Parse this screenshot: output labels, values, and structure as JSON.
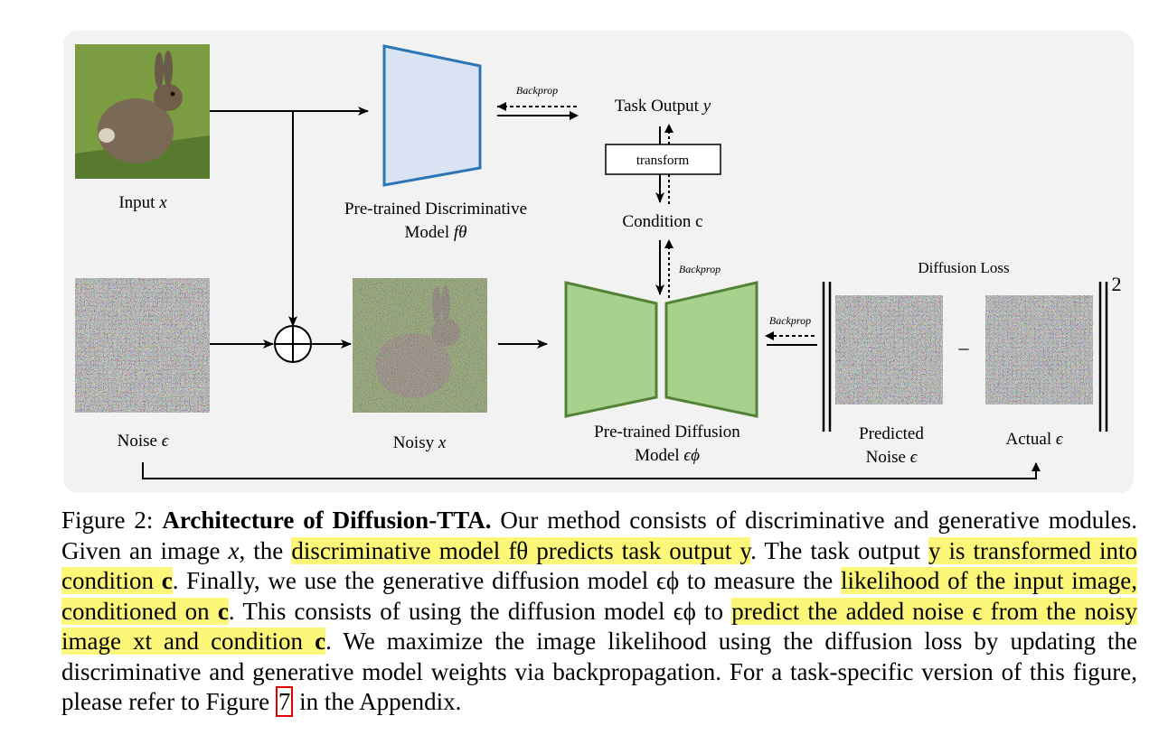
{
  "figure": {
    "input_label": "Input",
    "input_var": "x",
    "noise_label": "Noise",
    "noise_var": "ϵ",
    "noisy_label": "Noisy",
    "noisy_var": "x",
    "disc_model_line1": "Pre-trained Discriminative",
    "disc_model_line2": "Model",
    "disc_model_var": "fθ",
    "task_output_label": "Task Output",
    "task_output_var": "y",
    "transform_label": "transform",
    "condition_label": "Condition c",
    "backprop_label": "Backprop",
    "diff_model_line1": "Pre-trained Diffusion",
    "diff_model_line2": "Model",
    "diff_model_var": "ϵϕ",
    "diffusion_loss_label": "Diffusion Loss",
    "predicted_line1": "Predicted",
    "predicted_line2": "Noise",
    "predicted_var": "ϵ",
    "actual_label": "Actual",
    "actual_var": "ϵ",
    "minus_sign": "–",
    "exponent": "2",
    "colors": {
      "disc_fill": "#dae3f3",
      "disc_stroke": "#2e75b6",
      "diff_fill": "#a9d18e",
      "diff_stroke": "#548235",
      "panel_bg": "#f2f2f2"
    }
  },
  "caption": {
    "fig_num": "Figure 2:",
    "title": "Architecture of Diffusion-TTA.",
    "s1": " Our method consists of discriminative and generative modules. Given an image ",
    "v_x": "x",
    "s2": ", the ",
    "h1": "discriminative model fθ predicts task output y",
    "s3": ". The task output ",
    "h2": "y is transformed into condition ",
    "c1": "c",
    "s4": ". Finally, we use the generative diffusion model ϵϕ to measure the ",
    "h3": "likelihood of the input image, conditioned on ",
    "c2": "c",
    "s5": ". This consists of using the diffusion model ϵϕ to ",
    "h4": "predict the added noise ϵ from the noisy image xt and condition ",
    "c3": "c",
    "s6": ". We maximize the image likelihood using the diffusion loss by updating the discriminative and generative model weights via backpropagation. For a task-specific version of this figure, please refer to Figure ",
    "ref": "7",
    "s7": " in the Appendix."
  }
}
